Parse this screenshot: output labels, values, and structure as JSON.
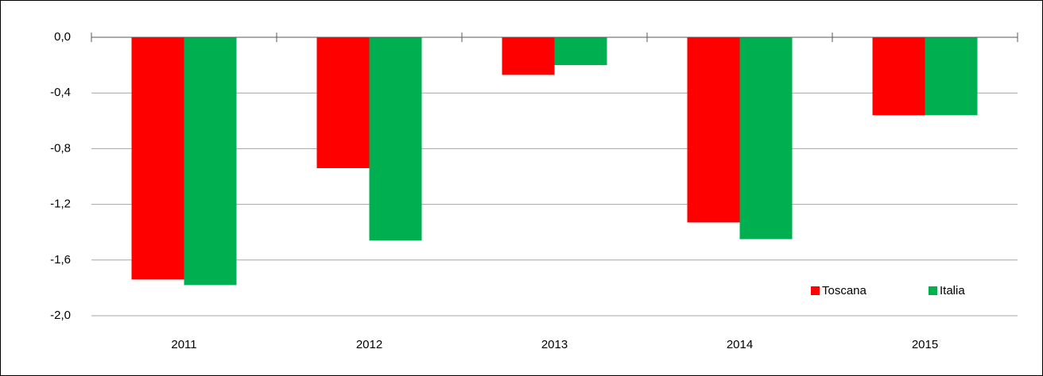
{
  "chart_data": {
    "type": "bar",
    "categories": [
      "2011",
      "2012",
      "2013",
      "2014",
      "2015"
    ],
    "series": [
      {
        "name": "Toscana",
        "color": "#ff0000",
        "values": [
          -1.74,
          -0.94,
          -0.27,
          -1.33,
          -0.56
        ]
      },
      {
        "name": "Italia",
        "color": "#00b050",
        "values": [
          -1.78,
          -1.46,
          -0.2,
          -1.45,
          -0.56
        ]
      }
    ],
    "ylim": [
      -2.0,
      0.0
    ],
    "yticks": [
      {
        "value": -2.0,
        "label": "-2,0"
      },
      {
        "value": -1.6,
        "label": "-1,6"
      },
      {
        "value": -1.2,
        "label": "-1,2"
      },
      {
        "value": -0.8,
        "label": "-0,8"
      },
      {
        "value": -0.4,
        "label": "-0,4"
      },
      {
        "value": 0.0,
        "label": "0,0"
      }
    ],
    "grid": true,
    "legend": "bottom-right"
  }
}
